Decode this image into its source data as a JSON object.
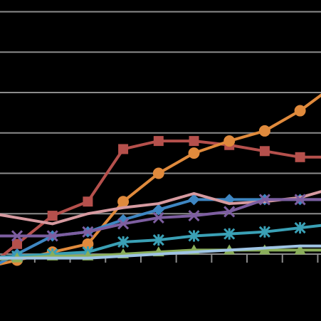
{
  "chart_data": {
    "type": "line",
    "x": [
      0,
      1,
      2,
      3,
      4,
      5,
      6,
      7,
      8,
      9
    ],
    "x_extend": [
      -0.5,
      9.5
    ],
    "ylim": [
      0,
      62
    ],
    "grid_values": [
      10,
      20,
      30,
      40,
      50,
      60
    ],
    "grid": true,
    "grid_color": "#8c8c8c",
    "axis_color": "#8c8c8c",
    "series": [
      {
        "color": "#b5504c",
        "marker": "square",
        "values": [
          2.5,
          9.5,
          13,
          26,
          28,
          28,
          27,
          25.5,
          24,
          24
        ]
      },
      {
        "color": "#e08a3c",
        "marker": "circle",
        "values": [
          -1.5,
          0.5,
          2.5,
          13,
          20,
          25,
          28,
          30.5,
          35.5,
          42
        ]
      },
      {
        "color": "#3e86c2",
        "marker": "diamond",
        "values": [
          0,
          4.5,
          5.5,
          8.5,
          11,
          13.5,
          13.5,
          13.5,
          13.5,
          13.5
        ]
      },
      {
        "color": "#d69aa0",
        "marker": "none",
        "values": [
          9,
          7.5,
          10,
          11.5,
          12.5,
          15,
          12.5,
          13,
          14,
          16.5
        ]
      },
      {
        "color": "#7d5ea0",
        "marker": "x",
        "values": [
          4.5,
          4.5,
          5.5,
          7.5,
          9,
          9.5,
          10.5,
          13.5,
          13.5,
          13.5
        ]
      },
      {
        "color": "#3aa0b5",
        "marker": "star",
        "values": [
          -0.5,
          0,
          0.5,
          3,
          3.5,
          4.5,
          5,
          5.5,
          6.5,
          7.5
        ]
      },
      {
        "color": "#8aae5a",
        "marker": "triangle",
        "values": [
          -1,
          -0.5,
          -0.5,
          0,
          0.5,
          1,
          1,
          1,
          1,
          1
        ]
      },
      {
        "color": "#9fc4e4",
        "marker": "none",
        "values": [
          -1,
          -1,
          -1,
          -0.5,
          0,
          0.5,
          1,
          1.5,
          2,
          2
        ]
      }
    ]
  }
}
